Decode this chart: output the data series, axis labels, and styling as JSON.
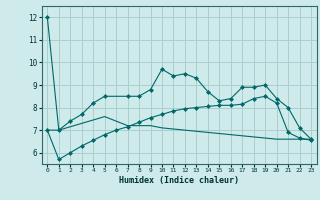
{
  "xlabel": "Humidex (Indice chaleur)",
  "bg_color": "#ceeaea",
  "grid_color": "#aacece",
  "line_color": "#006868",
  "xlim": [
    -0.5,
    23.5
  ],
  "ylim": [
    5.5,
    12.5
  ],
  "yticks": [
    6,
    7,
    8,
    9,
    10,
    11,
    12
  ],
  "xticks": [
    0,
    1,
    2,
    3,
    4,
    5,
    6,
    7,
    8,
    9,
    10,
    11,
    12,
    13,
    14,
    15,
    16,
    17,
    18,
    19,
    20,
    21,
    22,
    23
  ],
  "line1_x": [
    0,
    1,
    2,
    3,
    4,
    5,
    7,
    8,
    9,
    10,
    11,
    12,
    13,
    14,
    15,
    16,
    17,
    18,
    19,
    20,
    21,
    22,
    23
  ],
  "line1_y": [
    12.0,
    7.0,
    7.4,
    7.7,
    8.2,
    8.5,
    8.5,
    8.5,
    8.8,
    9.7,
    9.4,
    9.5,
    9.3,
    8.7,
    8.3,
    8.4,
    8.9,
    8.9,
    9.0,
    8.4,
    8.0,
    7.1,
    6.6
  ],
  "line2_x": [
    0,
    1,
    2,
    3,
    4,
    5,
    6,
    7,
    8,
    9,
    10,
    11,
    12,
    13,
    14,
    15,
    16,
    17,
    18,
    19,
    20,
    21,
    22,
    23
  ],
  "line2_y": [
    7.0,
    7.0,
    7.15,
    7.3,
    7.45,
    7.6,
    7.4,
    7.2,
    7.2,
    7.2,
    7.1,
    7.05,
    7.0,
    6.95,
    6.9,
    6.85,
    6.8,
    6.75,
    6.7,
    6.65,
    6.6,
    6.6,
    6.6,
    6.6
  ],
  "line3_x": [
    0,
    1,
    2,
    3,
    4,
    5,
    6,
    7,
    8,
    9,
    10,
    11,
    12,
    13,
    14,
    15,
    16,
    17,
    18,
    19,
    20,
    21,
    22,
    23
  ],
  "line3_y": [
    7.0,
    5.7,
    6.0,
    6.3,
    6.55,
    6.8,
    7.0,
    7.15,
    7.35,
    7.55,
    7.7,
    7.85,
    7.95,
    8.0,
    8.05,
    8.1,
    8.1,
    8.15,
    8.4,
    8.5,
    8.2,
    6.9,
    6.65,
    6.55
  ]
}
